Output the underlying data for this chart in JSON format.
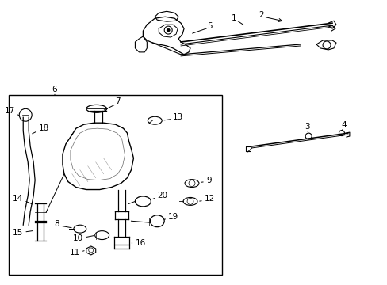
{
  "bg_color": "#ffffff",
  "line_color": "#000000",
  "label_color": "#000000",
  "font_size": 7.5
}
